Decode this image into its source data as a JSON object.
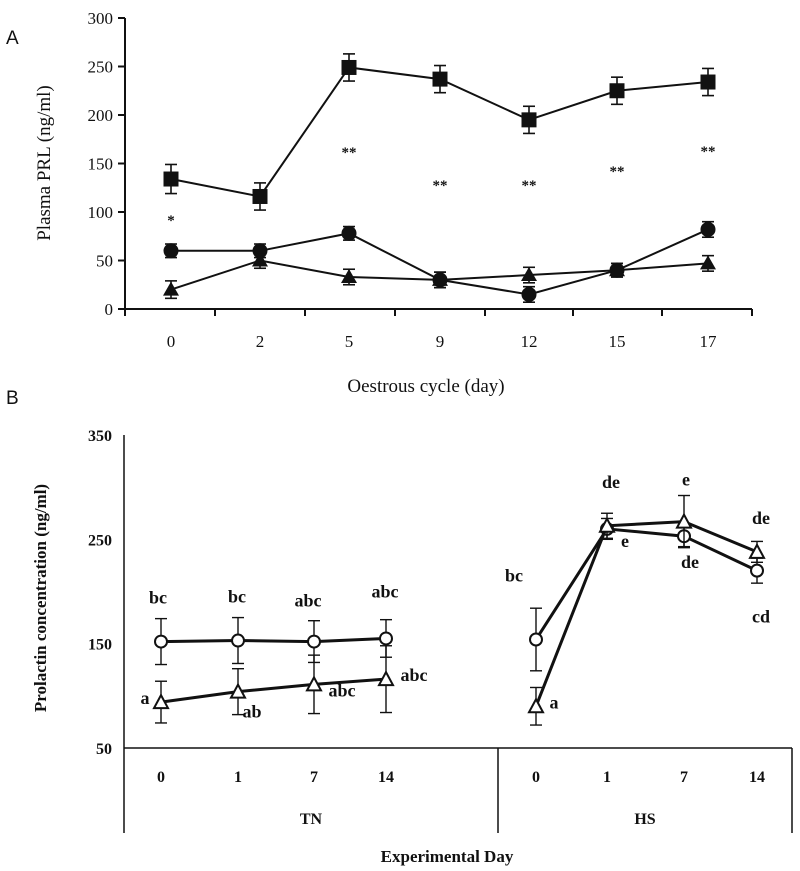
{
  "chart_data": [
    {
      "panel": "A",
      "type": "line",
      "title": "",
      "xlabel": "Oestrous cycle (day)",
      "ylabel": "Plasma PRL (ng/ml)",
      "ylim": [
        0,
        300
      ],
      "yticks": [
        "0",
        "50",
        "100",
        "150",
        "200",
        "250",
        "300"
      ],
      "categories": [
        "0",
        "2",
        "5",
        "9",
        "12",
        "15",
        "17"
      ],
      "series": [
        {
          "name": "square",
          "marker": "square",
          "values": [
            134,
            116,
            249,
            237,
            195,
            225,
            234
          ],
          "errors": [
            15,
            14,
            14,
            14,
            14,
            14,
            14
          ]
        },
        {
          "name": "circle",
          "marker": "circle",
          "values": [
            60,
            60,
            78,
            30,
            15,
            40,
            82
          ],
          "errors": [
            7,
            7,
            7,
            8,
            8,
            7,
            8
          ]
        },
        {
          "name": "triangle",
          "marker": "triangle",
          "values": [
            20,
            50,
            33,
            30,
            35,
            40,
            47
          ],
          "errors": [
            9,
            8,
            8,
            8,
            8,
            7,
            8
          ]
        }
      ],
      "significance": [
        "*",
        "",
        "**",
        "**",
        "**",
        "**",
        "**"
      ]
    },
    {
      "panel": "B",
      "type": "line",
      "title": "",
      "xlabel": "Experimental Day",
      "ylabel": "Prolactin concentration (ng/ml)",
      "ylim": [
        50,
        350
      ],
      "yticks": [
        "50",
        "150",
        "250",
        "350"
      ],
      "groups": [
        {
          "name": "TN",
          "categories": [
            "0",
            "1",
            "7",
            "14"
          ],
          "series": [
            {
              "name": "circle",
              "marker": "open-circle",
              "values": [
                152,
                153,
                152,
                155
              ],
              "errors": [
                22,
                22,
                20,
                18
              ],
              "labels": [
                "bc",
                "bc",
                "abc",
                "abc"
              ]
            },
            {
              "name": "triangle",
              "marker": "open-triangle",
              "values": [
                94,
                104,
                111,
                116
              ],
              "errors": [
                20,
                22,
                28,
                32
              ],
              "labels": [
                "a",
                "ab",
                "abc",
                "abc"
              ]
            }
          ]
        },
        {
          "name": "HS",
          "categories": [
            "0",
            "1",
            "7",
            "14"
          ],
          "series": [
            {
              "name": "circle",
              "marker": "open-circle",
              "values": [
                154,
                260,
                253,
                220
              ],
              "errors": [
                30,
                10,
                10,
                12
              ],
              "labels": [
                "bc",
                "e",
                "de",
                "cd"
              ]
            },
            {
              "name": "triangle",
              "marker": "open-triangle",
              "values": [
                90,
                263,
                267,
                238
              ],
              "errors": [
                18,
                12,
                25,
                10
              ],
              "labels": [
                "a",
                "de",
                "e",
                "de"
              ]
            }
          ]
        }
      ]
    }
  ],
  "panels": {
    "a": "A",
    "b": "B"
  }
}
